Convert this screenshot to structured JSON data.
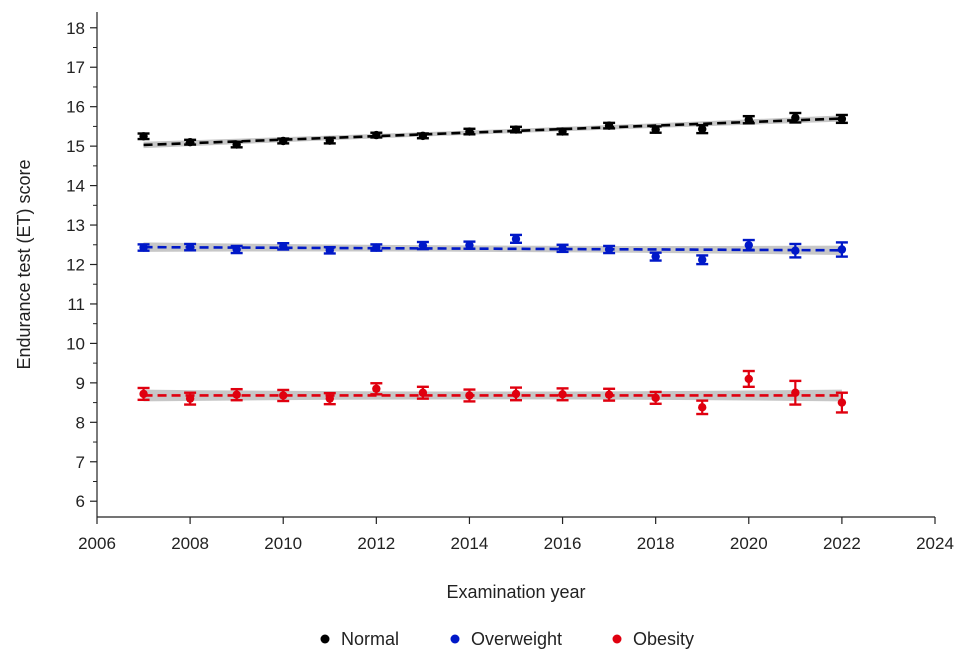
{
  "chart_data": {
    "type": "scatter",
    "title": "",
    "xlabel": "Examination year",
    "ylabel": "Endurance test (ET) score",
    "xlim": [
      2006,
      2024
    ],
    "ylim": [
      5.6,
      18.4
    ],
    "x_ticks": [
      2006,
      2008,
      2010,
      2012,
      2014,
      2016,
      2018,
      2020,
      2022,
      2024
    ],
    "x_tick_labels": [
      "2006",
      "2008",
      "2010",
      "2012",
      "2014",
      "2016",
      "2018",
      "2020",
      "2022",
      "2024"
    ],
    "y_ticks": [
      6,
      7,
      8,
      9,
      10,
      11,
      12,
      13,
      14,
      15,
      16,
      17,
      18
    ],
    "y_tick_labels": [
      "6",
      "7",
      "8",
      "9",
      "10",
      "11",
      "12",
      "13",
      "14",
      "15",
      "16",
      "17",
      "18"
    ],
    "grid": false,
    "legend_position": "bottom",
    "x": [
      2007,
      2008,
      2009,
      2010,
      2011,
      2012,
      2013,
      2014,
      2015,
      2016,
      2017,
      2018,
      2019,
      2020,
      2021,
      2022
    ],
    "series": [
      {
        "name": "Normal",
        "color": "#000000",
        "values": [
          15.25,
          15.1,
          15.04,
          15.13,
          15.14,
          15.28,
          15.26,
          15.37,
          15.42,
          15.37,
          15.52,
          15.42,
          15.43,
          15.67,
          15.72,
          15.69
        ],
        "error": [
          0.07,
          0.06,
          0.07,
          0.06,
          0.07,
          0.06,
          0.06,
          0.07,
          0.07,
          0.07,
          0.07,
          0.08,
          0.1,
          0.09,
          0.12,
          0.1
        ],
        "trend": {
          "start": [
            2007,
            15.03
          ],
          "end": [
            2022,
            15.7
          ],
          "ci": 0.08
        }
      },
      {
        "name": "Overweight",
        "color": "#0018c8",
        "values": [
          12.43,
          12.44,
          12.38,
          12.46,
          12.36,
          12.43,
          12.48,
          12.49,
          12.65,
          12.41,
          12.38,
          12.2,
          12.12,
          12.49,
          12.35,
          12.38
        ],
        "error": [
          0.08,
          0.08,
          0.09,
          0.08,
          0.08,
          0.08,
          0.09,
          0.09,
          0.1,
          0.09,
          0.09,
          0.1,
          0.11,
          0.13,
          0.17,
          0.18
        ],
        "trend": {
          "start": [
            2007,
            12.44
          ],
          "end": [
            2022,
            12.36
          ],
          "ci": 0.12
        }
      },
      {
        "name": "Obesity",
        "color": "#e0000f",
        "values": [
          8.72,
          8.6,
          8.7,
          8.68,
          8.6,
          8.85,
          8.75,
          8.68,
          8.72,
          8.71,
          8.7,
          8.62,
          8.38,
          9.1,
          8.75,
          8.5
        ],
        "error": [
          0.15,
          0.15,
          0.14,
          0.14,
          0.14,
          0.14,
          0.15,
          0.15,
          0.16,
          0.15,
          0.15,
          0.15,
          0.17,
          0.2,
          0.3,
          0.25
        ],
        "trend": {
          "start": [
            2007,
            8.68
          ],
          "end": [
            2022,
            8.68
          ],
          "ci": 0.15
        }
      }
    ]
  }
}
